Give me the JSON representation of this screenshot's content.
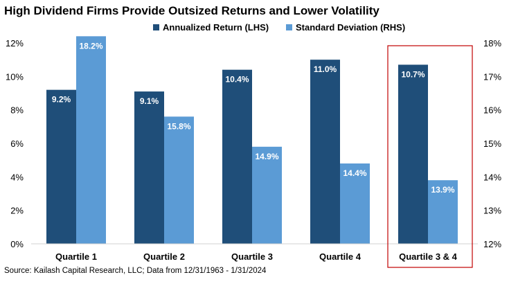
{
  "chart_data": {
    "type": "bar",
    "title": "High Dividend Firms Provide Outsized Returns and Lower Volatility",
    "categories": [
      "Quartile 1",
      "Quartile 2",
      "Quartile 3",
      "Quartile 4",
      "Quartile 3 & 4"
    ],
    "series": [
      {
        "name": "Annualized Return (LHS)",
        "axis": "left",
        "color": "#1f4e79",
        "values": [
          9.2,
          9.1,
          10.4,
          11.0,
          10.7
        ],
        "labels": [
          "9.2%",
          "9.1%",
          "10.4%",
          "11.0%",
          "10.7%"
        ]
      },
      {
        "name": "Standard Deviation (RHS)",
        "axis": "right",
        "color": "#5b9bd5",
        "values": [
          18.2,
          15.8,
          14.9,
          14.4,
          13.9
        ],
        "labels": [
          "18.2%",
          "15.8%",
          "14.9%",
          "14.4%",
          "13.9%"
        ]
      }
    ],
    "y_left": {
      "min": 0,
      "max": 12,
      "ticks": [
        "0%",
        "2%",
        "4%",
        "6%",
        "8%",
        "10%",
        "12%"
      ]
    },
    "y_right": {
      "min": 12,
      "max": 18,
      "ticks": [
        "12%",
        "13%",
        "14%",
        "15%",
        "16%",
        "17%",
        "18%"
      ]
    },
    "highlight_category": "Quartile 3 & 4",
    "highlight_color": "#c00000",
    "grid": false,
    "legend_position": "top-right",
    "source": "Source: Kailash Capital Research, LLC; Data from 12/31/1963 - 1/31/2024"
  }
}
